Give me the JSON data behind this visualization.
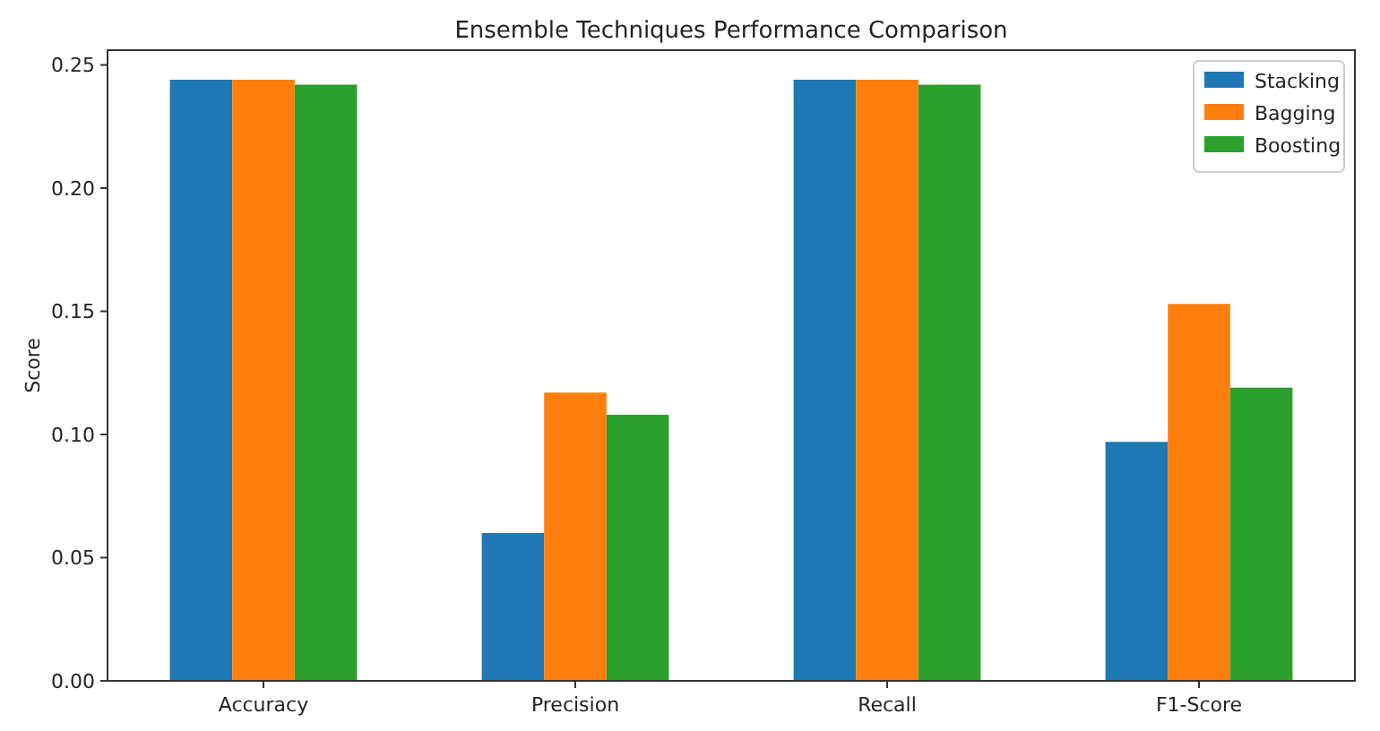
{
  "chart_data": {
    "type": "bar",
    "title": "Ensemble Techniques Performance Comparison",
    "ylabel": "Score",
    "categories": [
      "Accuracy",
      "Precision",
      "Recall",
      "F1-Score"
    ],
    "series": [
      {
        "name": "Stacking",
        "color": "#1f77b4",
        "values": [
          0.244,
          0.06,
          0.244,
          0.097
        ]
      },
      {
        "name": "Bagging",
        "color": "#ff7f0e",
        "values": [
          0.244,
          0.117,
          0.244,
          0.153
        ]
      },
      {
        "name": "Boosting",
        "color": "#2ca02c",
        "values": [
          0.242,
          0.108,
          0.242,
          0.119
        ]
      }
    ],
    "ylim": [
      0,
      0.256
    ],
    "yticks": [
      {
        "value": 0,
        "label": "0.00"
      },
      {
        "value": 0.05,
        "label": "0.05"
      },
      {
        "value": 0.1,
        "label": "0.10"
      },
      {
        "value": 0.15,
        "label": "0.15"
      },
      {
        "value": 0.2,
        "label": "0.20"
      },
      {
        "value": 0.25,
        "label": "0.25"
      }
    ],
    "grid": false,
    "legend": "top right"
  }
}
